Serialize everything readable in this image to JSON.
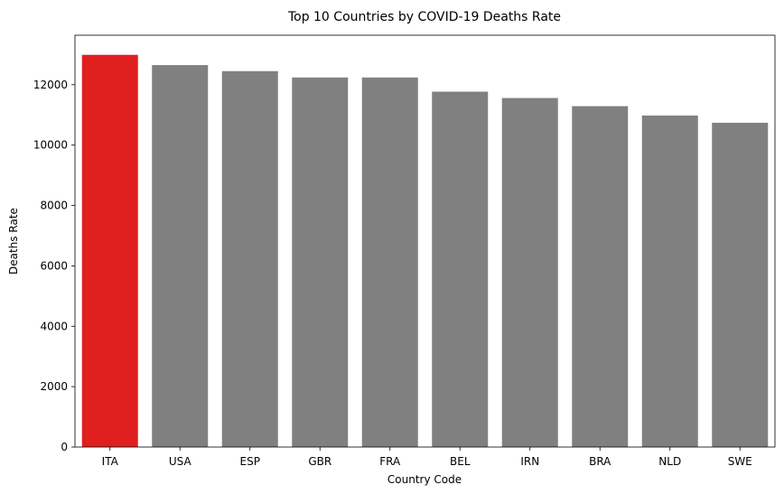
{
  "chart_data": {
    "type": "bar",
    "title": "Top 10 Countries by COVID-19 Deaths Rate",
    "xlabel": "Country Code",
    "ylabel": "Deaths Rate",
    "categories": [
      "ITA",
      "USA",
      "ESP",
      "GBR",
      "FRA",
      "BEL",
      "IRN",
      "BRA",
      "NLD",
      "SWE"
    ],
    "values": [
      12990,
      12650,
      12450,
      12240,
      12240,
      11770,
      11560,
      11290,
      10980,
      10740
    ],
    "ylim": [
      0,
      13640
    ],
    "yticks": [
      0,
      2000,
      4000,
      6000,
      8000,
      10000,
      12000
    ],
    "grid": false,
    "highlight_index": 0,
    "colors": {
      "highlight": "#e01f1f",
      "default": "#808080"
    }
  }
}
